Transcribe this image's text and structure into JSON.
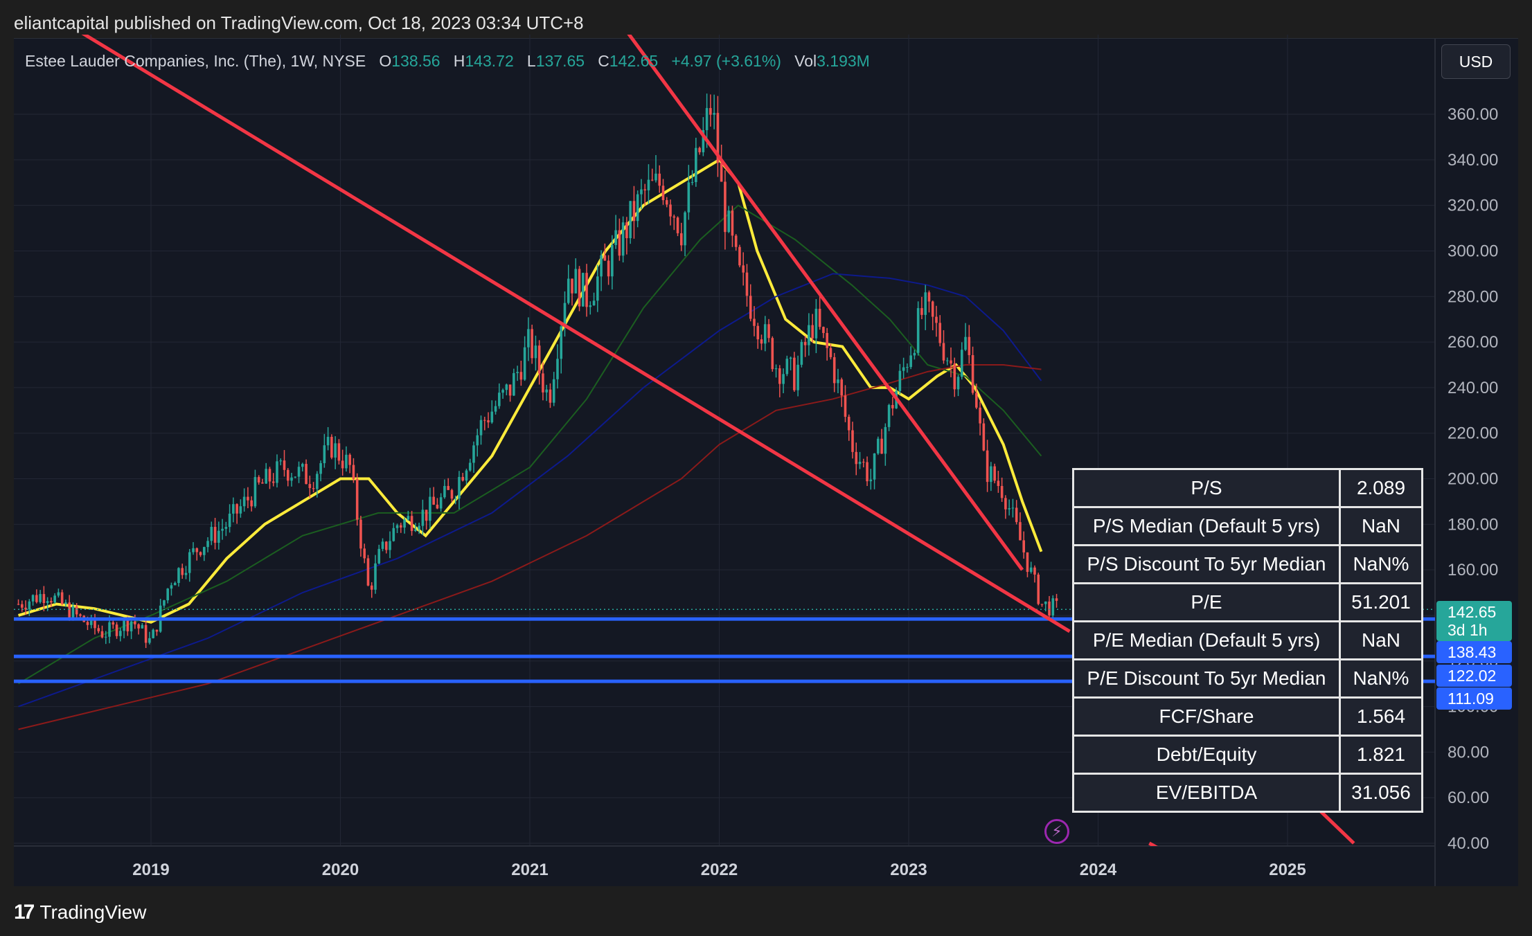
{
  "header": {
    "text": "eliantcapital published on TradingView.com, Oct 18, 2023 03:34 UTC+8"
  },
  "legend": {
    "symbol": "Estee Lauder Companies, Inc. (The), 1W, NYSE",
    "open_label": "O",
    "open": "138.56",
    "high_label": "H",
    "high": "143.72",
    "low_label": "L",
    "low": "137.65",
    "close_label": "C",
    "close": "142.65",
    "change": "+4.97 (+3.61%)",
    "vol_label": "Vol",
    "vol": "3.193M"
  },
  "currency_button": "USD",
  "footer": {
    "logo_mark": "17",
    "brand": "TradingView"
  },
  "colors": {
    "background": "#141823",
    "up": "#26a69a",
    "down": "#ef5350",
    "trendline": "#f23645",
    "support": "#2962ff",
    "ma_yellow": "#ffeb3b",
    "ma_green": "#1b5e20",
    "ma_blue": "#0d1a8c",
    "ma_red": "#8b1a1a"
  },
  "y_axis": {
    "ticks": [
      "360.00",
      "340.00",
      "320.00",
      "300.00",
      "280.00",
      "260.00",
      "240.00",
      "220.00",
      "200.00",
      "180.00",
      "160.00",
      "140.00",
      "120.00",
      "100.00",
      "80.00",
      "60.00",
      "40.00"
    ]
  },
  "x_axis": {
    "ticks": [
      "2019",
      "2020",
      "2021",
      "2022",
      "2023",
      "2024",
      "2025"
    ]
  },
  "price_tags": [
    {
      "value": "142.65",
      "sub": "3d 1h",
      "color": "#26a69a"
    },
    {
      "value": "138.43",
      "sub": "",
      "color": "#2962ff"
    },
    {
      "value": "122.02",
      "sub": "",
      "color": "#2962ff"
    },
    {
      "value": "111.09",
      "sub": "",
      "color": "#2962ff"
    }
  ],
  "metrics": [
    {
      "label": "P/S",
      "value": "2.089"
    },
    {
      "label": "P/S Median (Default 5 yrs)",
      "value": "NaN"
    },
    {
      "label": "P/S Discount To 5yr Median",
      "value": "NaN%"
    },
    {
      "label": "P/E",
      "value": "51.201"
    },
    {
      "label": "P/E Median (Default 5 yrs)",
      "value": "NaN"
    },
    {
      "label": "P/E Discount To 5yr Median",
      "value": "NaN%"
    },
    {
      "label": "FCF/Share",
      "value": "1.564"
    },
    {
      "label": "Debt/Equity",
      "value": "1.821"
    },
    {
      "label": "EV/EBITDA",
      "value": "31.056"
    }
  ],
  "chart_data": {
    "type": "candlestick",
    "title": "Estee Lauder Companies, Inc. (The), 1W, NYSE",
    "ylim": [
      40,
      370
    ],
    "xlim": [
      2018.3,
      2025.8
    ],
    "support_levels": [
      138.43,
      122.02,
      111.09
    ],
    "trendlines": [
      {
        "from": [
          2018.55,
          400
        ],
        "to": [
          2023.85,
          133
        ]
      },
      {
        "from": [
          2021.48,
          400
        ],
        "to": [
          2023.6,
          160
        ]
      },
      {
        "from": [
          2024.27,
          40
        ],
        "to": [
          2024.38,
          35
        ]
      },
      {
        "from": [
          2025.1,
          60
        ],
        "to": [
          2025.35,
          40
        ]
      }
    ],
    "close_series": {
      "x": [
        2018.3,
        2018.45,
        2018.6,
        2018.75,
        2018.9,
        2019.0,
        2019.1,
        2019.25,
        2019.4,
        2019.55,
        2019.7,
        2019.85,
        2019.95,
        2020.05,
        2020.15,
        2020.2,
        2020.3,
        2020.45,
        2020.6,
        2020.75,
        2020.9,
        2021.0,
        2021.1,
        2021.2,
        2021.3,
        2021.45,
        2021.6,
        2021.7,
        2021.8,
        2021.9,
        2021.96,
        2022.02,
        2022.1,
        2022.2,
        2022.3,
        2022.4,
        2022.5,
        2022.6,
        2022.7,
        2022.8,
        2022.9,
        2023.0,
        2023.08,
        2023.15,
        2023.25,
        2023.3,
        2023.35,
        2023.4,
        2023.5,
        2023.6,
        2023.7,
        2023.79
      ],
      "y": [
        145,
        150,
        140,
        132,
        138,
        128,
        155,
        170,
        180,
        195,
        205,
        200,
        215,
        205,
        150,
        165,
        180,
        185,
        195,
        225,
        240,
        260,
        235,
        290,
        280,
        300,
        325,
        330,
        310,
        345,
        365,
        320,
        290,
        270,
        250,
        245,
        270,
        250,
        215,
        200,
        230,
        255,
        275,
        265,
        245,
        260,
        240,
        205,
        195,
        170,
        145,
        142.65
      ]
    },
    "moving_averages": [
      {
        "name": "",
        "color": "#ffeb3b",
        "x": [
          2018.3,
          2018.5,
          2018.7,
          2019.0,
          2019.2,
          2019.4,
          2019.6,
          2019.8,
          2020.0,
          2020.15,
          2020.3,
          2020.45,
          2020.6,
          2020.8,
          2021.0,
          2021.2,
          2021.4,
          2021.6,
          2021.8,
          2022.0,
          2022.1,
          2022.2,
          2022.35,
          2022.5,
          2022.65,
          2022.8,
          2022.9,
          2023.0,
          2023.15,
          2023.25,
          2023.35,
          2023.5,
          2023.6,
          2023.7
        ],
        "y": [
          140,
          145,
          143,
          137,
          145,
          165,
          180,
          190,
          200,
          200,
          185,
          175,
          190,
          210,
          240,
          270,
          300,
          320,
          330,
          340,
          330,
          300,
          270,
          260,
          258,
          240,
          240,
          235,
          245,
          250,
          240,
          215,
          190,
          168
        ]
      },
      {
        "name": "",
        "color": "#1b5e20",
        "x": [
          2018.3,
          2018.7,
          2019.0,
          2019.4,
          2019.8,
          2020.2,
          2020.6,
          2021.0,
          2021.3,
          2021.6,
          2021.9,
          2022.1,
          2022.4,
          2022.7,
          2022.9,
          2023.1,
          2023.3,
          2023.5,
          2023.7
        ],
        "y": [
          110,
          130,
          140,
          155,
          175,
          185,
          185,
          205,
          235,
          275,
          305,
          320,
          305,
          285,
          270,
          250,
          245,
          230,
          210
        ]
      },
      {
        "name": "",
        "color": "#0d1a8c",
        "x": [
          2018.3,
          2018.8,
          2019.3,
          2019.8,
          2020.3,
          2020.8,
          2021.2,
          2021.6,
          2022.0,
          2022.3,
          2022.6,
          2022.9,
          2023.1,
          2023.3,
          2023.5,
          2023.7
        ],
        "y": [
          100,
          115,
          130,
          150,
          165,
          185,
          210,
          240,
          265,
          280,
          290,
          288,
          285,
          280,
          265,
          243
        ]
      },
      {
        "name": "",
        "color": "#8b1a1a",
        "x": [
          2018.3,
          2018.8,
          2019.3,
          2019.8,
          2020.3,
          2020.8,
          2021.3,
          2021.8,
          2022.0,
          2022.3,
          2022.6,
          2022.9,
          2023.1,
          2023.3,
          2023.5,
          2023.7
        ],
        "y": [
          90,
          100,
          110,
          125,
          140,
          155,
          175,
          200,
          215,
          230,
          235,
          242,
          247,
          250,
          250,
          248
        ]
      }
    ]
  }
}
